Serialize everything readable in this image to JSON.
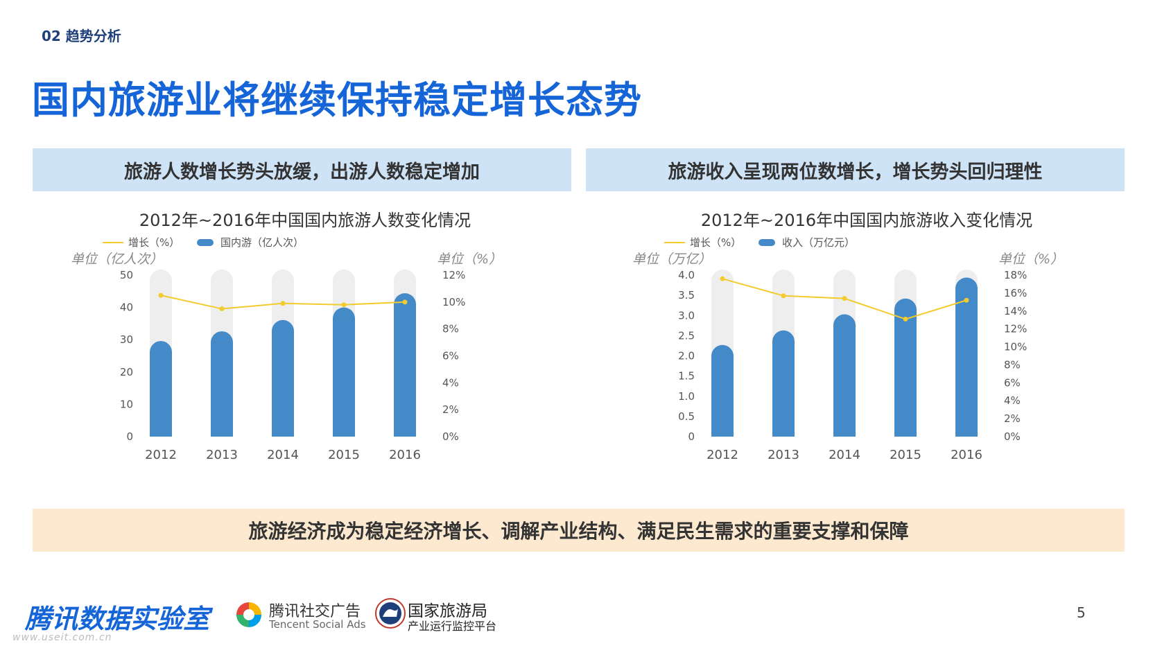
{
  "header": {
    "section": "02 趋势分析",
    "title": "国内旅游业将继续保持稳定增长态势"
  },
  "banners": {
    "left": "旅游人数增长势头放缓，出游人数稳定增加",
    "right": "旅游收入呈现两位数增长，增长势头回归理性",
    "bottom": "旅游经济成为稳定经济增长、调解产业结构、满足民生需求的重要支撑和保障"
  },
  "colors": {
    "title_blue": "#1565d8",
    "bar_blue": "#4489c8",
    "bar_track": "#eeeeee",
    "line_yellow": "#f2cb2c",
    "banner_blue": "#cfe3f7",
    "banner_orange": "#fde9cf"
  },
  "chart_data": [
    {
      "type": "bar",
      "title": "2012年~2016年中国国内旅游人数变化情况",
      "categories": [
        "2012",
        "2013",
        "2014",
        "2015",
        "2016"
      ],
      "series": [
        {
          "name": "国内游（亿人次）",
          "axis": "left",
          "type": "bar",
          "values": [
            29.6,
            32.6,
            36.1,
            40.0,
            44.4
          ]
        },
        {
          "name": "增长（%）",
          "axis": "right",
          "type": "line",
          "values": [
            10.5,
            9.5,
            9.9,
            9.8,
            10.0
          ]
        }
      ],
      "legend": [
        "增长（%）",
        "国内游（亿人次）"
      ],
      "ylabel_left": "单位（亿人次）",
      "ylabel_right": "单位（%）",
      "ylim_left": [
        0,
        50
      ],
      "yticks_left": [
        "0",
        "10",
        "20",
        "30",
        "40",
        "50"
      ],
      "ylim_right": [
        0,
        12
      ],
      "yticks_right": [
        "0%",
        "2%",
        "4%",
        "6%",
        "8%",
        "10%",
        "12%"
      ]
    },
    {
      "type": "bar",
      "title": "2012年~2016年中国国内旅游收入变化情况",
      "categories": [
        "2012",
        "2013",
        "2014",
        "2015",
        "2016"
      ],
      "series": [
        {
          "name": "收入（万亿元）",
          "axis": "left",
          "type": "bar",
          "values": [
            2.27,
            2.63,
            3.03,
            3.42,
            3.94
          ]
        },
        {
          "name": "增长（%）",
          "axis": "right",
          "type": "line",
          "values": [
            17.6,
            15.7,
            15.4,
            13.1,
            15.2
          ]
        }
      ],
      "legend": [
        "增长（%）",
        "收入（万亿元）"
      ],
      "ylabel_left": "单位（万亿）",
      "ylabel_right": "单位（%）",
      "ylim_left": [
        0,
        4
      ],
      "yticks_left": [
        "0",
        "0.5",
        "1.0",
        "1.5",
        "2.0",
        "2.5",
        "3.0",
        "3.5",
        "4.0"
      ],
      "ylim_right": [
        0,
        18
      ],
      "yticks_right": [
        "0%",
        "2%",
        "4%",
        "6%",
        "8%",
        "10%",
        "12%",
        "14%",
        "16%",
        "18%"
      ]
    }
  ],
  "footer": {
    "logo1": "腾讯数据实验室",
    "logo2_cn": "腾讯社交广告",
    "logo2_en": "Tencent Social Ads",
    "logo3_cn": "国家旅游局",
    "logo3_sub": "产业运行监控平台",
    "watermark": "www.useit.com.cn",
    "page_number": "5"
  }
}
